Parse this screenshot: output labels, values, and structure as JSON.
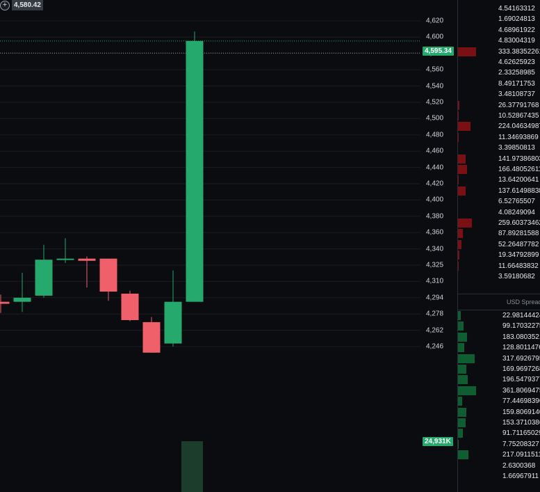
{
  "chart_data": {
    "type": "candlestick",
    "ylim": [
      4246,
      4620
    ],
    "y_ticks": [
      "4,620",
      "4,600",
      "4,580",
      "4,560",
      "4,540",
      "4,520",
      "4,500",
      "4,480",
      "4,460",
      "4,440",
      "4,420",
      "4,400",
      "4,380",
      "4,360",
      "4,340",
      "4,325",
      "4,310",
      "4,294",
      "4,278",
      "4,262",
      "4,246"
    ],
    "candles": [
      {
        "open": 4290,
        "high": 4297,
        "low": 4279,
        "close": 4288
      },
      {
        "open": 4290,
        "high": 4318,
        "low": 4280,
        "close": 4294
      },
      {
        "open": 4296,
        "high": 4345,
        "low": 4294,
        "close": 4330
      },
      {
        "open": 4330,
        "high": 4353,
        "low": 4327,
        "close": 4331
      },
      {
        "open": 4331,
        "high": 4333,
        "low": 4304,
        "close": 4329
      },
      {
        "open": 4331,
        "high": 4331,
        "low": 4291,
        "close": 4300
      },
      {
        "open": 4298,
        "high": 4301,
        "low": 4271,
        "close": 4272
      },
      {
        "open": 4270,
        "high": 4275,
        "low": 4240,
        "close": 4240
      },
      {
        "open": 4249,
        "high": 4320,
        "low": 4246,
        "close": 4290
      },
      {
        "open": 4290,
        "high": 4607,
        "low": 4290,
        "close": 4595.34
      }
    ],
    "last_price": "4,595.34",
    "crosshair_price": "4,580.42",
    "volume_label": "24,931K",
    "colors": {
      "up": "#26a96c",
      "down": "#f0606b",
      "background": "#0b0c0f",
      "grid": "#1a1d24"
    }
  },
  "orderbook": {
    "asks": [
      {
        "value": "4.54163312",
        "depth": 0
      },
      {
        "value": "1.69024813",
        "depth": 0
      },
      {
        "value": "4.68961922",
        "depth": 0
      },
      {
        "value": "4.83004319",
        "depth": 0
      },
      {
        "value": "333.38352261",
        "depth": 0.22
      },
      {
        "value": "4.62625923",
        "depth": 0
      },
      {
        "value": "2.33258985",
        "depth": 0
      },
      {
        "value": "8.49171753",
        "depth": 0
      },
      {
        "value": "3.48108737",
        "depth": 0
      },
      {
        "value": "26.37791768",
        "depth": 0.02
      },
      {
        "value": "10.52867435",
        "depth": 0.01
      },
      {
        "value": "224.04634987",
        "depth": 0.15
      },
      {
        "value": "11.34693869",
        "depth": 0.01
      },
      {
        "value": "3.39850813",
        "depth": 0
      },
      {
        "value": "141.97386803",
        "depth": 0.09
      },
      {
        "value": "166.48052611",
        "depth": 0.11
      },
      {
        "value": "13.64200641",
        "depth": 0.01
      },
      {
        "value": "137.61498838",
        "depth": 0.09
      },
      {
        "value": "6.52765507",
        "depth": 0
      },
      {
        "value": "4.08249094",
        "depth": 0
      },
      {
        "value": "259.60373462",
        "depth": 0.17
      },
      {
        "value": "87.89281588",
        "depth": 0.06
      },
      {
        "value": "52.26487782",
        "depth": 0.04
      },
      {
        "value": "19.34792899",
        "depth": 0.02
      },
      {
        "value": "11.66483832",
        "depth": 0.01
      },
      {
        "value": "3.59180682",
        "depth": 0
      }
    ],
    "spread_label": "USD Spread",
    "bids": [
      {
        "value": "22.98144424",
        "depth": 0.03
      },
      {
        "value": "99.17032275",
        "depth": 0.07
      },
      {
        "value": "183.08035212",
        "depth": 0.11
      },
      {
        "value": "128.80114769",
        "depth": 0.08
      },
      {
        "value": "317.6926795",
        "depth": 0.2
      },
      {
        "value": "169.96972685",
        "depth": 0.1
      },
      {
        "value": "196.54793771",
        "depth": 0.12
      },
      {
        "value": "361.80694758",
        "depth": 0.22
      },
      {
        "value": "77.44698396",
        "depth": 0.05
      },
      {
        "value": "159.80691404",
        "depth": 0.1
      },
      {
        "value": "153.37103866",
        "depth": 0.09
      },
      {
        "value": "91.71165029",
        "depth": 0.06
      },
      {
        "value": "7.75208327",
        "depth": 0.01
      },
      {
        "value": "217.09115119",
        "depth": 0.13
      },
      {
        "value": "2.6300368",
        "depth": 0
      },
      {
        "value": "1.66967911",
        "depth": 0
      }
    ]
  }
}
